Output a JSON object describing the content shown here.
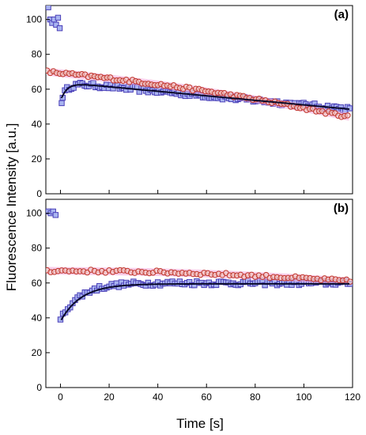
{
  "figure": {
    "ylabel": "Fluorescence Intensity [a.u.]",
    "xlabel": "Time [s]"
  },
  "chart_data": [
    {
      "type": "scatter",
      "panel_label": "(a)",
      "xlim": [
        -6,
        120
      ],
      "ylim": [
        0,
        108
      ],
      "x_ticks": [
        0,
        20,
        40,
        60,
        80,
        100,
        120
      ],
      "y_ticks": [
        0,
        20,
        40,
        60,
        80,
        100
      ],
      "show_x_tick_labels": false,
      "grid": false,
      "series": [
        {
          "marker": "square",
          "color": "#4a3fb8",
          "fill": "#a9b4f0",
          "pre_bleach": [
            [
              -5,
              107
            ],
            [
              -4.2,
              100
            ],
            [
              -3.4,
              98
            ],
            [
              -2.6,
              100
            ],
            [
              -1.8,
              97
            ],
            [
              -1.0,
              101
            ],
            [
              -0.3,
              95
            ]
          ],
          "post_start": 0,
          "post_end": 119,
          "post_step": 0.9,
          "post_fn": {
            "kind": "recovery_decay",
            "base": 55,
            "amp": 9,
            "tau": 2.5,
            "slope": -0.13,
            "start_offset": 0.5
          },
          "extra_points": [
            [
              0.5,
              52
            ]
          ]
        },
        {
          "marker": "circle",
          "color": "#c0362c",
          "fill": "#f2c9c2",
          "band_color": "#f2a6d8",
          "post_start": -5.5,
          "post_end": 119,
          "post_step": 1.3,
          "post_fn": {
            "kind": "linear",
            "y0": 70,
            "y1": 44,
            "x0": -5.5,
            "x1": 119,
            "bow": 2.5
          }
        }
      ],
      "fit": {
        "color": "#0a0a2a",
        "x_start": 0.3,
        "x_end": 119,
        "fn": {
          "kind": "recovery_decay",
          "base": 55,
          "amp": 9,
          "tau": 2.5,
          "slope": -0.13,
          "start_offset": 0.5
        }
      }
    },
    {
      "type": "scatter",
      "panel_label": "(b)",
      "xlim": [
        -6,
        120
      ],
      "ylim": [
        0,
        108
      ],
      "x_ticks": [
        0,
        20,
        40,
        60,
        80,
        100,
        120
      ],
      "y_ticks": [
        0,
        20,
        40,
        60,
        80,
        100
      ],
      "show_x_tick_labels": true,
      "grid": false,
      "series": [
        {
          "marker": "square",
          "color": "#4a3fb8",
          "fill": "#a9b4f0",
          "pre_bleach": [
            [
              -5,
              101
            ],
            [
              -4.0,
              100
            ],
            [
              -3.0,
              101
            ],
            [
              -2.0,
              99
            ]
          ],
          "post_start": 0,
          "post_end": 119,
          "post_step": 1.0,
          "post_fn": {
            "kind": "recovery",
            "y0": 39,
            "yinf": 60,
            "tau": 8
          }
        },
        {
          "marker": "circle",
          "color": "#c0362c",
          "fill": "#f2c9c2",
          "band_color": "#f2a6d8",
          "post_start": -5.5,
          "post_end": 119,
          "post_step": 1.5,
          "post_fn": {
            "kind": "linear",
            "y0": 67,
            "y1": 61,
            "x0": -5.5,
            "x1": 119,
            "bow": 1.5
          }
        }
      ],
      "fit": {
        "color": "#0a0a2a",
        "x_start": 0.3,
        "x_end": 119,
        "fn": {
          "kind": "recovery",
          "y0": 38,
          "yinf": 59.5,
          "tau": 8.5
        }
      }
    }
  ]
}
